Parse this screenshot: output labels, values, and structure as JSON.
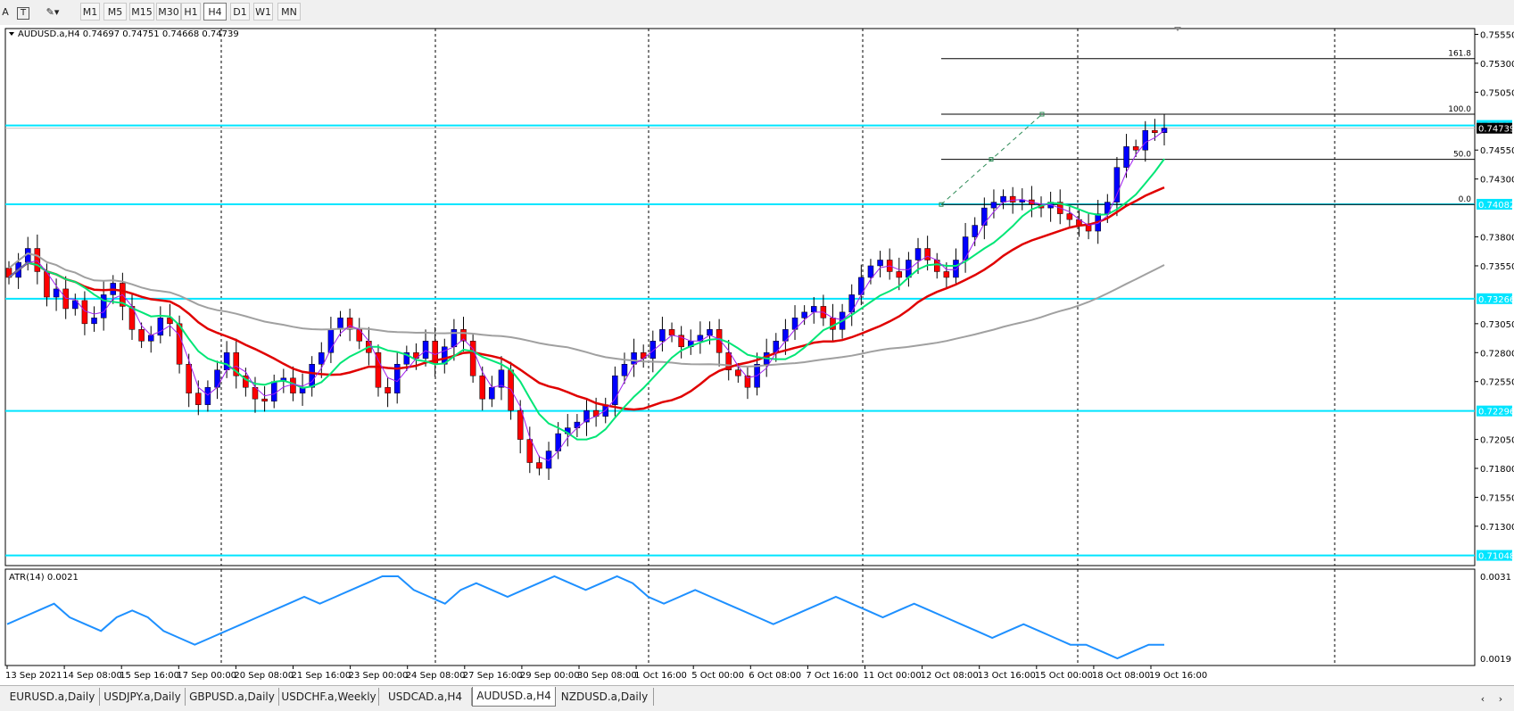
{
  "toolbar": {
    "left_icons": [
      "A",
      "T",
      "objects"
    ],
    "timeframes": [
      "M1",
      "M5",
      "M15",
      "M30",
      "H1",
      "H4",
      "D1",
      "W1",
      "MN"
    ],
    "active_timeframe": "H4"
  },
  "chart_header": "AUDUSD.a,H4  0.74697 0.74751 0.74668 0.74739",
  "indicator_header": "ATR(14) 0.0021",
  "price_axis_labels": [
    "0.75550",
    "0.75300",
    "0.75050",
    "0.74550",
    "0.74300",
    "0.73800",
    "0.73550",
    "0.73050",
    "0.72800",
    "0.72550",
    "0.72050",
    "0.71800",
    "0.71550",
    "0.71300"
  ],
  "hline_labels": [
    "0.74763",
    "0.74739",
    "0.74082",
    "0.73266",
    "0.72296",
    "0.71048"
  ],
  "fib_labels": [
    "161.8",
    "100.0",
    "50.0",
    "0.0"
  ],
  "atr_axis_labels": [
    "0.0031",
    "0.0019"
  ],
  "time_labels": [
    "13 Sep 2021",
    "14 Sep 08:00",
    "15 Sep 16:00",
    "17 Sep 00:00",
    "20 Sep 08:00",
    "21 Sep 16:00",
    "23 Sep 00:00",
    "24 Sep 08:00",
    "27 Sep 16:00",
    "29 Sep 00:00",
    "30 Sep 08:00",
    "1 Oct 16:00",
    "5 Oct 00:00",
    "6 Oct 08:00",
    "7 Oct 16:00",
    "11 Oct 00:00",
    "12 Oct 08:00",
    "13 Oct 16:00",
    "15 Oct 00:00",
    "18 Oct 08:00",
    "19 Oct 16:00"
  ],
  "tabs": [
    "EURUSD.a,Daily",
    "USDJPY.a,Daily",
    "GBPUSD.a,Daily",
    "USDCHF.a,Weekly",
    "USDCAD.a,H4",
    "AUDUSD.a,H4",
    "NZDUSD.a,Daily"
  ],
  "active_tab": "AUDUSD.a,H4",
  "colors": {
    "bull": "#0000ff",
    "bear": "#ff0000",
    "hline": "#00e5ff",
    "ma_fast": "#a020f0",
    "ma_mid": "#00e676",
    "ma_slow": "#e00000",
    "ma_long": "#a0a0a0",
    "atr": "#1e90ff",
    "fib": "#000000"
  },
  "chart_data": {
    "type": "line",
    "symbol": "AUDUSD.a",
    "timeframe": "H4",
    "ohlc_last": {
      "open": 0.74697,
      "high": 0.74751,
      "low": 0.74668,
      "close": 0.74739
    },
    "ylim": [
      0.7096,
      0.756
    ],
    "horizontal_levels": [
      0.74763,
      0.74082,
      0.73266,
      0.72296,
      0.71048
    ],
    "fibonacci_levels": {
      "0.0": 0.7408,
      "50.0": 0.7447,
      "100.0": 0.7486,
      "161.8": 0.7534
    },
    "close_series": [
      0.7345,
      0.7358,
      0.737,
      0.735,
      0.7328,
      0.7335,
      0.7318,
      0.7325,
      0.7305,
      0.731,
      0.733,
      0.734,
      0.732,
      0.73,
      0.729,
      0.7295,
      0.731,
      0.7305,
      0.727,
      0.7245,
      0.7235,
      0.725,
      0.7265,
      0.728,
      0.726,
      0.725,
      0.724,
      0.7238,
      0.7255,
      0.7258,
      0.7245,
      0.725,
      0.727,
      0.728,
      0.73,
      0.731,
      0.73,
      0.729,
      0.728,
      0.725,
      0.7245,
      0.727,
      0.728,
      0.7275,
      0.729,
      0.727,
      0.7285,
      0.73,
      0.729,
      0.726,
      0.724,
      0.725,
      0.7265,
      0.723,
      0.7205,
      0.7185,
      0.718,
      0.7195,
      0.721,
      0.7215,
      0.722,
      0.723,
      0.7225,
      0.7235,
      0.726,
      0.727,
      0.728,
      0.7275,
      0.729,
      0.73,
      0.7295,
      0.7285,
      0.729,
      0.7295,
      0.73,
      0.728,
      0.7265,
      0.726,
      0.725,
      0.727,
      0.728,
      0.729,
      0.73,
      0.731,
      0.7315,
      0.732,
      0.731,
      0.73,
      0.7315,
      0.733,
      0.7345,
      0.7355,
      0.736,
      0.735,
      0.7345,
      0.736,
      0.737,
      0.736,
      0.735,
      0.7345,
      0.736,
      0.738,
      0.739,
      0.7405,
      0.741,
      0.7415,
      0.741,
      0.7412,
      0.7408,
      0.7405,
      0.741,
      0.74,
      0.7395,
      0.739,
      0.7385,
      0.74,
      0.741,
      0.744,
      0.7458,
      0.7455,
      0.7472,
      0.747,
      0.7474
    ],
    "atr_series": [
      0.0024,
      0.0025,
      0.0026,
      0.0027,
      0.0025,
      0.0024,
      0.0023,
      0.0025,
      0.0026,
      0.0025,
      0.0023,
      0.0022,
      0.0021,
      0.0022,
      0.0023,
      0.0024,
      0.0025,
      0.0026,
      0.0027,
      0.0028,
      0.0027,
      0.0028,
      0.0029,
      0.003,
      0.0031,
      0.0031,
      0.0029,
      0.0028,
      0.0027,
      0.0029,
      0.003,
      0.0029,
      0.0028,
      0.0029,
      0.003,
      0.0031,
      0.003,
      0.0029,
      0.003,
      0.0031,
      0.003,
      0.0028,
      0.0027,
      0.0028,
      0.0029,
      0.0028,
      0.0027,
      0.0026,
      0.0025,
      0.0024,
      0.0025,
      0.0026,
      0.0027,
      0.0028,
      0.0027,
      0.0026,
      0.0025,
      0.0026,
      0.0027,
      0.0026,
      0.0025,
      0.0024,
      0.0023,
      0.0022,
      0.0023,
      0.0024,
      0.0023,
      0.0022,
      0.0021,
      0.0021,
      0.002,
      0.0019,
      0.002,
      0.0021,
      0.0021
    ],
    "atr_ylim": [
      0.0019,
      0.0031
    ]
  }
}
